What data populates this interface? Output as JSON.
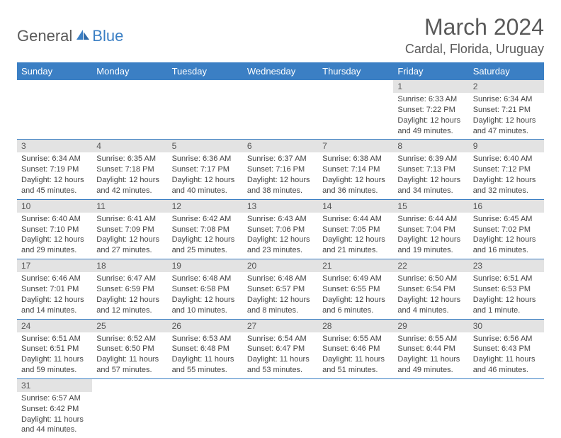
{
  "logo": {
    "text1": "General",
    "text2": "Blue"
  },
  "title": "March 2024",
  "location": "Cardal, Florida, Uruguay",
  "colors": {
    "header_bg": "#3b7fc4",
    "header_fg": "#ffffff",
    "daynum_bg": "#e3e3e3",
    "border": "#3b7fc4",
    "page_bg": "#ffffff",
    "text": "#444444",
    "muted": "#5a5a5a"
  },
  "fonts": {
    "title_size": 32,
    "location_size": 18,
    "dayheader_size": 13,
    "cell_size": 11
  },
  "dayHeaders": [
    "Sunday",
    "Monday",
    "Tuesday",
    "Wednesday",
    "Thursday",
    "Friday",
    "Saturday"
  ],
  "weeks": [
    [
      null,
      null,
      null,
      null,
      null,
      {
        "n": "1",
        "sr": "Sunrise: 6:33 AM",
        "ss": "Sunset: 7:22 PM",
        "dl": "Daylight: 12 hours and 49 minutes."
      },
      {
        "n": "2",
        "sr": "Sunrise: 6:34 AM",
        "ss": "Sunset: 7:21 PM",
        "dl": "Daylight: 12 hours and 47 minutes."
      }
    ],
    [
      {
        "n": "3",
        "sr": "Sunrise: 6:34 AM",
        "ss": "Sunset: 7:19 PM",
        "dl": "Daylight: 12 hours and 45 minutes."
      },
      {
        "n": "4",
        "sr": "Sunrise: 6:35 AM",
        "ss": "Sunset: 7:18 PM",
        "dl": "Daylight: 12 hours and 42 minutes."
      },
      {
        "n": "5",
        "sr": "Sunrise: 6:36 AM",
        "ss": "Sunset: 7:17 PM",
        "dl": "Daylight: 12 hours and 40 minutes."
      },
      {
        "n": "6",
        "sr": "Sunrise: 6:37 AM",
        "ss": "Sunset: 7:16 PM",
        "dl": "Daylight: 12 hours and 38 minutes."
      },
      {
        "n": "7",
        "sr": "Sunrise: 6:38 AM",
        "ss": "Sunset: 7:14 PM",
        "dl": "Daylight: 12 hours and 36 minutes."
      },
      {
        "n": "8",
        "sr": "Sunrise: 6:39 AM",
        "ss": "Sunset: 7:13 PM",
        "dl": "Daylight: 12 hours and 34 minutes."
      },
      {
        "n": "9",
        "sr": "Sunrise: 6:40 AM",
        "ss": "Sunset: 7:12 PM",
        "dl": "Daylight: 12 hours and 32 minutes."
      }
    ],
    [
      {
        "n": "10",
        "sr": "Sunrise: 6:40 AM",
        "ss": "Sunset: 7:10 PM",
        "dl": "Daylight: 12 hours and 29 minutes."
      },
      {
        "n": "11",
        "sr": "Sunrise: 6:41 AM",
        "ss": "Sunset: 7:09 PM",
        "dl": "Daylight: 12 hours and 27 minutes."
      },
      {
        "n": "12",
        "sr": "Sunrise: 6:42 AM",
        "ss": "Sunset: 7:08 PM",
        "dl": "Daylight: 12 hours and 25 minutes."
      },
      {
        "n": "13",
        "sr": "Sunrise: 6:43 AM",
        "ss": "Sunset: 7:06 PM",
        "dl": "Daylight: 12 hours and 23 minutes."
      },
      {
        "n": "14",
        "sr": "Sunrise: 6:44 AM",
        "ss": "Sunset: 7:05 PM",
        "dl": "Daylight: 12 hours and 21 minutes."
      },
      {
        "n": "15",
        "sr": "Sunrise: 6:44 AM",
        "ss": "Sunset: 7:04 PM",
        "dl": "Daylight: 12 hours and 19 minutes."
      },
      {
        "n": "16",
        "sr": "Sunrise: 6:45 AM",
        "ss": "Sunset: 7:02 PM",
        "dl": "Daylight: 12 hours and 16 minutes."
      }
    ],
    [
      {
        "n": "17",
        "sr": "Sunrise: 6:46 AM",
        "ss": "Sunset: 7:01 PM",
        "dl": "Daylight: 12 hours and 14 minutes."
      },
      {
        "n": "18",
        "sr": "Sunrise: 6:47 AM",
        "ss": "Sunset: 6:59 PM",
        "dl": "Daylight: 12 hours and 12 minutes."
      },
      {
        "n": "19",
        "sr": "Sunrise: 6:48 AM",
        "ss": "Sunset: 6:58 PM",
        "dl": "Daylight: 12 hours and 10 minutes."
      },
      {
        "n": "20",
        "sr": "Sunrise: 6:48 AM",
        "ss": "Sunset: 6:57 PM",
        "dl": "Daylight: 12 hours and 8 minutes."
      },
      {
        "n": "21",
        "sr": "Sunrise: 6:49 AM",
        "ss": "Sunset: 6:55 PM",
        "dl": "Daylight: 12 hours and 6 minutes."
      },
      {
        "n": "22",
        "sr": "Sunrise: 6:50 AM",
        "ss": "Sunset: 6:54 PM",
        "dl": "Daylight: 12 hours and 4 minutes."
      },
      {
        "n": "23",
        "sr": "Sunrise: 6:51 AM",
        "ss": "Sunset: 6:53 PM",
        "dl": "Daylight: 12 hours and 1 minute."
      }
    ],
    [
      {
        "n": "24",
        "sr": "Sunrise: 6:51 AM",
        "ss": "Sunset: 6:51 PM",
        "dl": "Daylight: 11 hours and 59 minutes."
      },
      {
        "n": "25",
        "sr": "Sunrise: 6:52 AM",
        "ss": "Sunset: 6:50 PM",
        "dl": "Daylight: 11 hours and 57 minutes."
      },
      {
        "n": "26",
        "sr": "Sunrise: 6:53 AM",
        "ss": "Sunset: 6:48 PM",
        "dl": "Daylight: 11 hours and 55 minutes."
      },
      {
        "n": "27",
        "sr": "Sunrise: 6:54 AM",
        "ss": "Sunset: 6:47 PM",
        "dl": "Daylight: 11 hours and 53 minutes."
      },
      {
        "n": "28",
        "sr": "Sunrise: 6:55 AM",
        "ss": "Sunset: 6:46 PM",
        "dl": "Daylight: 11 hours and 51 minutes."
      },
      {
        "n": "29",
        "sr": "Sunrise: 6:55 AM",
        "ss": "Sunset: 6:44 PM",
        "dl": "Daylight: 11 hours and 49 minutes."
      },
      {
        "n": "30",
        "sr": "Sunrise: 6:56 AM",
        "ss": "Sunset: 6:43 PM",
        "dl": "Daylight: 11 hours and 46 minutes."
      }
    ],
    [
      {
        "n": "31",
        "sr": "Sunrise: 6:57 AM",
        "ss": "Sunset: 6:42 PM",
        "dl": "Daylight: 11 hours and 44 minutes."
      },
      null,
      null,
      null,
      null,
      null,
      null
    ]
  ]
}
